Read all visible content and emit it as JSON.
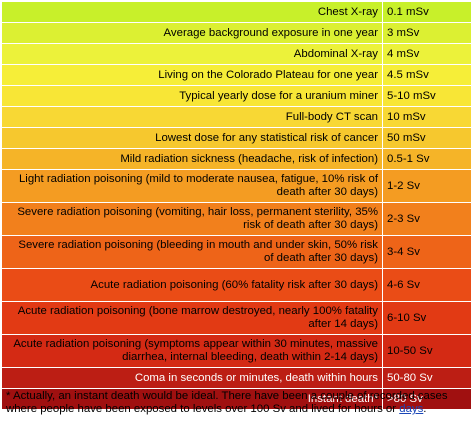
{
  "rows": [
    {
      "description": "Chest X-ray",
      "dose": "0.1 mSv",
      "color": "#c8f02a",
      "text_color": "#000000"
    },
    {
      "description": "Average background exposure in one year",
      "dose": "3 mSv",
      "color": "#dcf032",
      "text_color": "#000000"
    },
    {
      "description": "Abdominal X-ray",
      "dose": "4 mSv",
      "color": "#ecf23a",
      "text_color": "#000000"
    },
    {
      "description": "Living on the Colorado Plateau for one year",
      "dose": "4.5 mSv",
      "color": "#f6ee38",
      "text_color": "#000000"
    },
    {
      "description": "Typical yearly dose for a uranium miner",
      "dose": "5-10 mSv",
      "color": "#f8e636",
      "text_color": "#000000"
    },
    {
      "description": "Full-body CT scan",
      "dose": "10 mSv",
      "color": "#f8d834",
      "text_color": "#000000"
    },
    {
      "description": "Lowest dose for any statistical risk of cancer",
      "dose": "50 mSv",
      "color": "#f6c82e",
      "text_color": "#000000"
    },
    {
      "description": "Mild radiation sickness (headache, risk of infection)",
      "dose": "0.5-1 Sv",
      "color": "#f5b428",
      "text_color": "#000000"
    },
    {
      "description": "Light radiation poisoning (mild to moderate nausea, fatigue, 10% risk of death after 30 days)",
      "dose": "1-2 Sv",
      "color": "#f49c22",
      "text_color": "#000000"
    },
    {
      "description": "Severe radiation poisoning (vomiting, hair loss, permanent sterility, 35% risk of death after 30 days)",
      "dose": "2-3 Sv",
      "color": "#f2801c",
      "text_color": "#000000"
    },
    {
      "description": "Severe radiation poisoning (bleeding in mouth and under skin, 50% risk of death after 30 days)",
      "dose": "3-4 Sv",
      "color": "#ee6418",
      "text_color": "#000000"
    },
    {
      "description": "Acute radiation poisoning (60% fatality risk after 30 days)",
      "dose": "4-6 Sv",
      "color": "#ea4c16",
      "text_color": "#000000"
    },
    {
      "description": "Acute radiation poisoning (bone marrow destroyed, nearly 100% fatality after 14 days)",
      "dose": "6-10 Sv",
      "color": "#e23a14",
      "text_color": "#000000"
    },
    {
      "description": "Acute radiation poisoning (symptoms appear within 30 minutes, massive diarrhea, internal bleeding, death within 2-14 days)",
      "dose": "10-50 Sv",
      "color": "#d42a14",
      "text_color": "#000000"
    },
    {
      "description": "Coma in seconds or minutes, death within hours",
      "dose": "50-80 Sv",
      "color": "#bc1e14",
      "text_color": "#ffffff"
    },
    {
      "description": "Instant death*",
      "dose": ">80 Sv",
      "color": "#a01010",
      "text_color": "#ffffff"
    }
  ],
  "footnote": {
    "text": "* Actually, an instant death would be ideal. There have been a couple of recorded cases where people have been exposed to levels over 100 Sv and lived for hours or ",
    "link_text": "days",
    "end": "."
  }
}
